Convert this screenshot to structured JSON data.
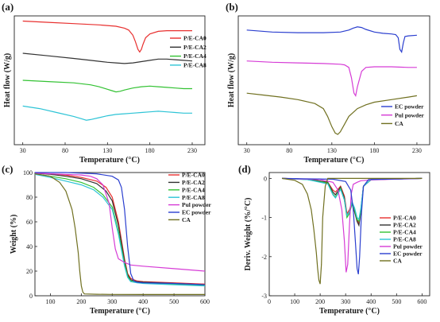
{
  "chart_data": [
    {
      "panel": "(a)",
      "type": "line",
      "xlabel": "Temperature (°C)",
      "ylabel": "Heat flow (W/g)",
      "xlim": [
        20,
        245
      ],
      "xticks": [
        30,
        80,
        130,
        180,
        230
      ],
      "yticks": [],
      "ylim": [
        0,
        1
      ],
      "legend_position": "right",
      "series": [
        {
          "name": "P/E-CA0",
          "color": "#e8302f",
          "x": [
            30,
            60,
            90,
            120,
            140,
            150,
            155,
            160,
            163,
            166,
            168,
            170,
            172,
            175,
            180,
            190,
            200,
            210,
            220,
            230
          ],
          "y": [
            0.96,
            0.95,
            0.94,
            0.93,
            0.92,
            0.905,
            0.89,
            0.85,
            0.8,
            0.74,
            0.72,
            0.74,
            0.78,
            0.83,
            0.86,
            0.88,
            0.885,
            0.885,
            0.885,
            0.885
          ]
        },
        {
          "name": "P/E-CA2",
          "color": "#333333",
          "x": [
            30,
            60,
            90,
            110,
            130,
            140,
            150,
            160,
            170,
            180,
            190,
            200,
            210,
            220,
            230
          ],
          "y": [
            0.71,
            0.69,
            0.67,
            0.655,
            0.64,
            0.635,
            0.63,
            0.635,
            0.645,
            0.655,
            0.665,
            0.665,
            0.66,
            0.655,
            0.65
          ]
        },
        {
          "name": "P/E-CA4",
          "color": "#33c233",
          "x": [
            30,
            60,
            90,
            110,
            120,
            130,
            135,
            140,
            145,
            150,
            160,
            170,
            180,
            190,
            200,
            210,
            220,
            230
          ],
          "y": [
            0.5,
            0.49,
            0.48,
            0.465,
            0.45,
            0.43,
            0.42,
            0.41,
            0.415,
            0.425,
            0.44,
            0.45,
            0.455,
            0.45,
            0.445,
            0.44,
            0.435,
            0.435
          ]
        },
        {
          "name": "P/E-CA8",
          "color": "#2ec4d6",
          "x": [
            30,
            50,
            70,
            90,
            100,
            105,
            110,
            120,
            130,
            140,
            150,
            160,
            170,
            180,
            190,
            200,
            210,
            220,
            230
          ],
          "y": [
            0.3,
            0.28,
            0.25,
            0.22,
            0.2,
            0.19,
            0.195,
            0.21,
            0.225,
            0.235,
            0.24,
            0.245,
            0.25,
            0.255,
            0.26,
            0.255,
            0.25,
            0.245,
            0.245
          ]
        }
      ]
    },
    {
      "panel": "(b)",
      "type": "line",
      "xlabel": "Temperature (°C)",
      "ylabel": "Heat flow (W/g)",
      "xlim": [
        20,
        245
      ],
      "xticks": [
        30,
        80,
        130,
        180,
        230
      ],
      "yticks": [],
      "ylim": [
        0,
        1
      ],
      "legend_position": "bottom-right",
      "series": [
        {
          "name": "EC powder",
          "color": "#2b3fcf",
          "x": [
            30,
            60,
            90,
            120,
            140,
            150,
            155,
            160,
            165,
            170,
            180,
            190,
            200,
            205,
            208,
            210,
            212,
            214,
            216,
            220,
            230
          ],
          "y": [
            0.89,
            0.875,
            0.87,
            0.87,
            0.875,
            0.89,
            0.905,
            0.915,
            0.91,
            0.895,
            0.875,
            0.865,
            0.86,
            0.855,
            0.83,
            0.74,
            0.72,
            0.79,
            0.84,
            0.845,
            0.85
          ]
        },
        {
          "name": "Pul powder",
          "color": "#d63cd6",
          "x": [
            30,
            60,
            90,
            120,
            140,
            145,
            150,
            153,
            156,
            158,
            160,
            165,
            170,
            180,
            200,
            220,
            230
          ],
          "y": [
            0.65,
            0.64,
            0.635,
            0.63,
            0.625,
            0.62,
            0.6,
            0.52,
            0.4,
            0.38,
            0.45,
            0.57,
            0.6,
            0.605,
            0.605,
            0.6,
            0.6
          ]
        },
        {
          "name": "CA",
          "color": "#707020",
          "x": [
            30,
            50,
            70,
            90,
            110,
            120,
            125,
            130,
            134,
            137,
            140,
            145,
            150,
            160,
            170,
            180,
            200,
            220,
            230
          ],
          "y": [
            0.4,
            0.385,
            0.37,
            0.35,
            0.32,
            0.28,
            0.22,
            0.14,
            0.09,
            0.08,
            0.1,
            0.16,
            0.22,
            0.28,
            0.31,
            0.33,
            0.35,
            0.37,
            0.38
          ]
        }
      ]
    },
    {
      "panel": "(c)",
      "type": "line",
      "xlabel": "Temperature (°C)",
      "ylabel": "Weight (%)",
      "xlim": [
        50,
        600
      ],
      "ylim": [
        0,
        100
      ],
      "xticks": [
        100,
        200,
        300,
        400,
        500,
        600
      ],
      "yticks": [
        0,
        20,
        40,
        60,
        80,
        100
      ],
      "legend_position": "top-right",
      "series": [
        {
          "name": "P/E-CA0",
          "color": "#e8302f",
          "x": [
            50,
            100,
            150,
            200,
            250,
            280,
            300,
            320,
            340,
            350,
            360,
            380,
            400,
            500,
            600
          ],
          "y": [
            99.5,
            99,
            98,
            96,
            93,
            88,
            80,
            60,
            30,
            18,
            14,
            12,
            11.5,
            10.5,
            9.5
          ]
        },
        {
          "name": "P/E-CA2",
          "color": "#333333",
          "x": [
            50,
            100,
            150,
            200,
            250,
            280,
            300,
            320,
            340,
            350,
            360,
            380,
            400,
            500,
            600
          ],
          "y": [
            99.5,
            98.5,
            97,
            95,
            91,
            85,
            77,
            57,
            28,
            17,
            13,
            11.5,
            11,
            10,
            9
          ]
        },
        {
          "name": "P/E-CA4",
          "color": "#33c233",
          "x": [
            50,
            100,
            150,
            200,
            240,
            270,
            300,
            320,
            340,
            350,
            360,
            380,
            400,
            500,
            600
          ],
          "y": [
            99,
            97,
            95,
            92,
            88,
            82,
            72,
            52,
            26,
            16,
            12,
            11,
            10.5,
            9.5,
            8.5
          ]
        },
        {
          "name": "P/E-CA8",
          "color": "#2ec4d6",
          "x": [
            50,
            100,
            150,
            200,
            240,
            270,
            300,
            320,
            340,
            350,
            360,
            380,
            400,
            500,
            600
          ],
          "y": [
            98.5,
            96,
            93,
            90,
            86,
            80,
            70,
            50,
            24,
            15,
            11.5,
            10.5,
            10,
            9,
            8
          ]
        },
        {
          "name": "Pul powder",
          "color": "#d63cd6",
          "x": [
            50,
            100,
            150,
            200,
            230,
            250,
            270,
            290,
            300,
            310,
            320,
            340,
            360,
            400,
            500,
            600
          ],
          "y": [
            99.5,
            99,
            98.5,
            98,
            97,
            95,
            90,
            75,
            55,
            38,
            30,
            27,
            25,
            24,
            22,
            20
          ]
        },
        {
          "name": "EC powder",
          "color": "#2b3fcf",
          "x": [
            50,
            100,
            150,
            200,
            250,
            300,
            320,
            330,
            340,
            350,
            360,
            370,
            380,
            400,
            500,
            600
          ],
          "y": [
            100,
            100,
            100,
            99.5,
            99,
            97,
            94,
            88,
            70,
            40,
            18,
            12,
            11,
            10.5,
            10,
            9
          ]
        },
        {
          "name": "CA",
          "color": "#707020",
          "x": [
            50,
            100,
            130,
            150,
            170,
            180,
            190,
            195,
            200,
            205,
            210,
            250,
            300,
            400,
            500,
            600
          ],
          "y": [
            99,
            97,
            92,
            85,
            70,
            55,
            35,
            20,
            8,
            3,
            1.5,
            1.2,
            1.1,
            1,
            1,
            1
          ]
        }
      ]
    },
    {
      "panel": "(d)",
      "type": "line",
      "xlabel": "Temperature (°C)",
      "ylabel": "Deriv. Weight (%/°C)",
      "xlim": [
        0,
        630
      ],
      "ylim": [
        -3,
        0.15
      ],
      "xticks": [
        0,
        100,
        200,
        300,
        400,
        500,
        600
      ],
      "yticks": [
        -3,
        -2,
        -1,
        0
      ],
      "legend_position": "right",
      "series": [
        {
          "name": "P/E-CA0",
          "color": "#e8302f",
          "x": [
            50,
            150,
            230,
            250,
            260,
            280,
            295,
            305,
            315,
            325,
            335,
            345,
            352,
            360,
            370,
            400,
            600
          ],
          "y": [
            0,
            -0.02,
            -0.1,
            -0.3,
            -0.35,
            -0.2,
            -0.45,
            -0.9,
            -0.8,
            -0.6,
            -0.8,
            -1.05,
            -1.15,
            -0.8,
            -0.2,
            -0.03,
            0
          ]
        },
        {
          "name": "P/E-CA2",
          "color": "#333333",
          "x": [
            50,
            150,
            230,
            250,
            260,
            280,
            295,
            305,
            315,
            325,
            335,
            345,
            352,
            360,
            370,
            400,
            600
          ],
          "y": [
            0,
            -0.02,
            -0.1,
            -0.35,
            -0.42,
            -0.22,
            -0.5,
            -0.95,
            -0.85,
            -0.65,
            -0.85,
            -1.1,
            -1.2,
            -0.85,
            -0.2,
            -0.03,
            0
          ]
        },
        {
          "name": "P/E-CA4",
          "color": "#33c233",
          "x": [
            50,
            150,
            230,
            250,
            260,
            280,
            295,
            305,
            315,
            325,
            335,
            345,
            352,
            360,
            370,
            400,
            600
          ],
          "y": [
            0,
            -0.03,
            -0.12,
            -0.4,
            -0.48,
            -0.25,
            -0.55,
            -1.0,
            -0.9,
            -0.65,
            -0.8,
            -1.05,
            -1.1,
            -0.8,
            -0.2,
            -0.03,
            0
          ]
        },
        {
          "name": "P/E-CA8",
          "color": "#2ec4d6",
          "x": [
            50,
            150,
            230,
            250,
            260,
            280,
            295,
            305,
            315,
            325,
            335,
            345,
            352,
            360,
            370,
            400,
            600
          ],
          "y": [
            0,
            -0.03,
            -0.14,
            -0.42,
            -0.5,
            -0.28,
            -0.55,
            -0.95,
            -0.85,
            -0.6,
            -0.75,
            -1.0,
            -1.05,
            -0.75,
            -0.2,
            -0.03,
            0
          ]
        },
        {
          "name": "Pul powder",
          "color": "#d63cd6",
          "x": [
            50,
            200,
            250,
            270,
            285,
            295,
            302,
            308,
            315,
            322,
            330,
            345,
            360,
            400,
            600
          ],
          "y": [
            0,
            -0.03,
            -0.1,
            -0.3,
            -0.8,
            -1.6,
            -2.4,
            -2.2,
            -1.2,
            -0.4,
            -0.15,
            -0.1,
            -0.06,
            -0.04,
            0
          ]
        },
        {
          "name": "EC powder",
          "color": "#2b3fcf",
          "x": [
            50,
            250,
            300,
            320,
            330,
            338,
            345,
            350,
            355,
            362,
            370,
            390,
            600
          ],
          "y": [
            0,
            -0.02,
            -0.08,
            -0.3,
            -0.8,
            -1.6,
            -2.3,
            -2.45,
            -2.0,
            -0.9,
            -0.2,
            -0.03,
            0
          ]
        },
        {
          "name": "CA",
          "color": "#707020",
          "x": [
            50,
            100,
            130,
            150,
            165,
            175,
            185,
            190,
            195,
            200,
            205,
            210,
            220,
            230,
            600
          ],
          "y": [
            0,
            -0.05,
            -0.15,
            -0.4,
            -0.8,
            -1.3,
            -1.9,
            -2.3,
            -2.6,
            -2.7,
            -2.2,
            -1.0,
            -0.2,
            0,
            0
          ]
        }
      ]
    }
  ]
}
